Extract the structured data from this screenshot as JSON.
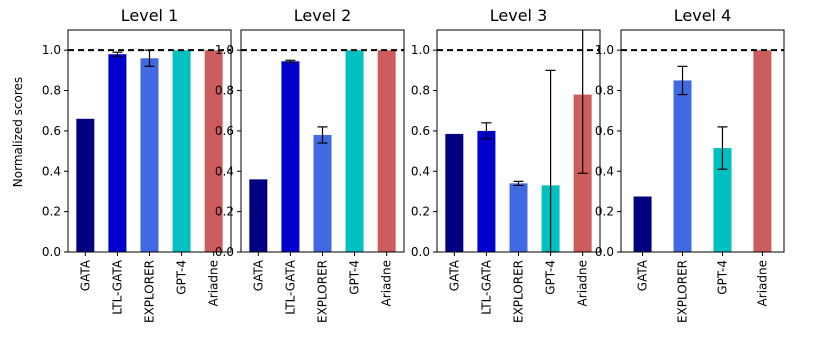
{
  "chart_data": {
    "type": "bar",
    "ylabel": "Normalized scores",
    "ylim": [
      0.0,
      1.1
    ],
    "yticks": [
      "0.0",
      "0.2",
      "0.4",
      "0.6",
      "0.8",
      "1.0"
    ],
    "reference_line": 1.0,
    "grid": false,
    "colors": {
      "GATA": "#000080",
      "LTL-GATA": "#0000cd",
      "EXPLORER": "#4169e1",
      "GPT-4": "#00c0c0",
      "Ariadne": "#cd5c5c"
    },
    "panels": [
      {
        "title": "Level 1",
        "categories": [
          "GATA",
          "LTL-GATA",
          "EXPLORER",
          "GPT-4",
          "Ariadne"
        ],
        "values": [
          0.66,
          0.98,
          0.96,
          1.0,
          1.0
        ],
        "err_low": [
          0.0,
          0.01,
          0.04,
          0.0,
          0.0
        ],
        "err_high": [
          0.0,
          0.01,
          0.04,
          0.0,
          0.0
        ]
      },
      {
        "title": "Level 2",
        "categories": [
          "GATA",
          "LTL-GATA",
          "EXPLORER",
          "GPT-4",
          "Ariadne"
        ],
        "values": [
          0.36,
          0.945,
          0.58,
          1.0,
          1.0
        ],
        "err_low": [
          0.0,
          0.005,
          0.04,
          0.0,
          0.0
        ],
        "err_high": [
          0.0,
          0.005,
          0.04,
          0.0,
          0.0
        ]
      },
      {
        "title": "Level 3",
        "categories": [
          "GATA",
          "LTL-GATA",
          "EXPLORER",
          "GPT-4",
          "Ariadne"
        ],
        "values": [
          0.585,
          0.6,
          0.34,
          0.33,
          0.78
        ],
        "err_low": [
          0.0,
          0.04,
          0.01,
          0.33,
          0.39
        ],
        "err_high": [
          0.0,
          0.04,
          0.01,
          0.57,
          0.39
        ]
      },
      {
        "title": "Level 4",
        "categories": [
          "GATA",
          "EXPLORER",
          "GPT-4",
          "Ariadne"
        ],
        "values": [
          0.275,
          0.85,
          0.515,
          1.0
        ],
        "err_low": [
          0.0,
          0.07,
          0.105,
          0.0
        ],
        "err_high": [
          0.0,
          0.07,
          0.105,
          0.0
        ]
      }
    ]
  }
}
